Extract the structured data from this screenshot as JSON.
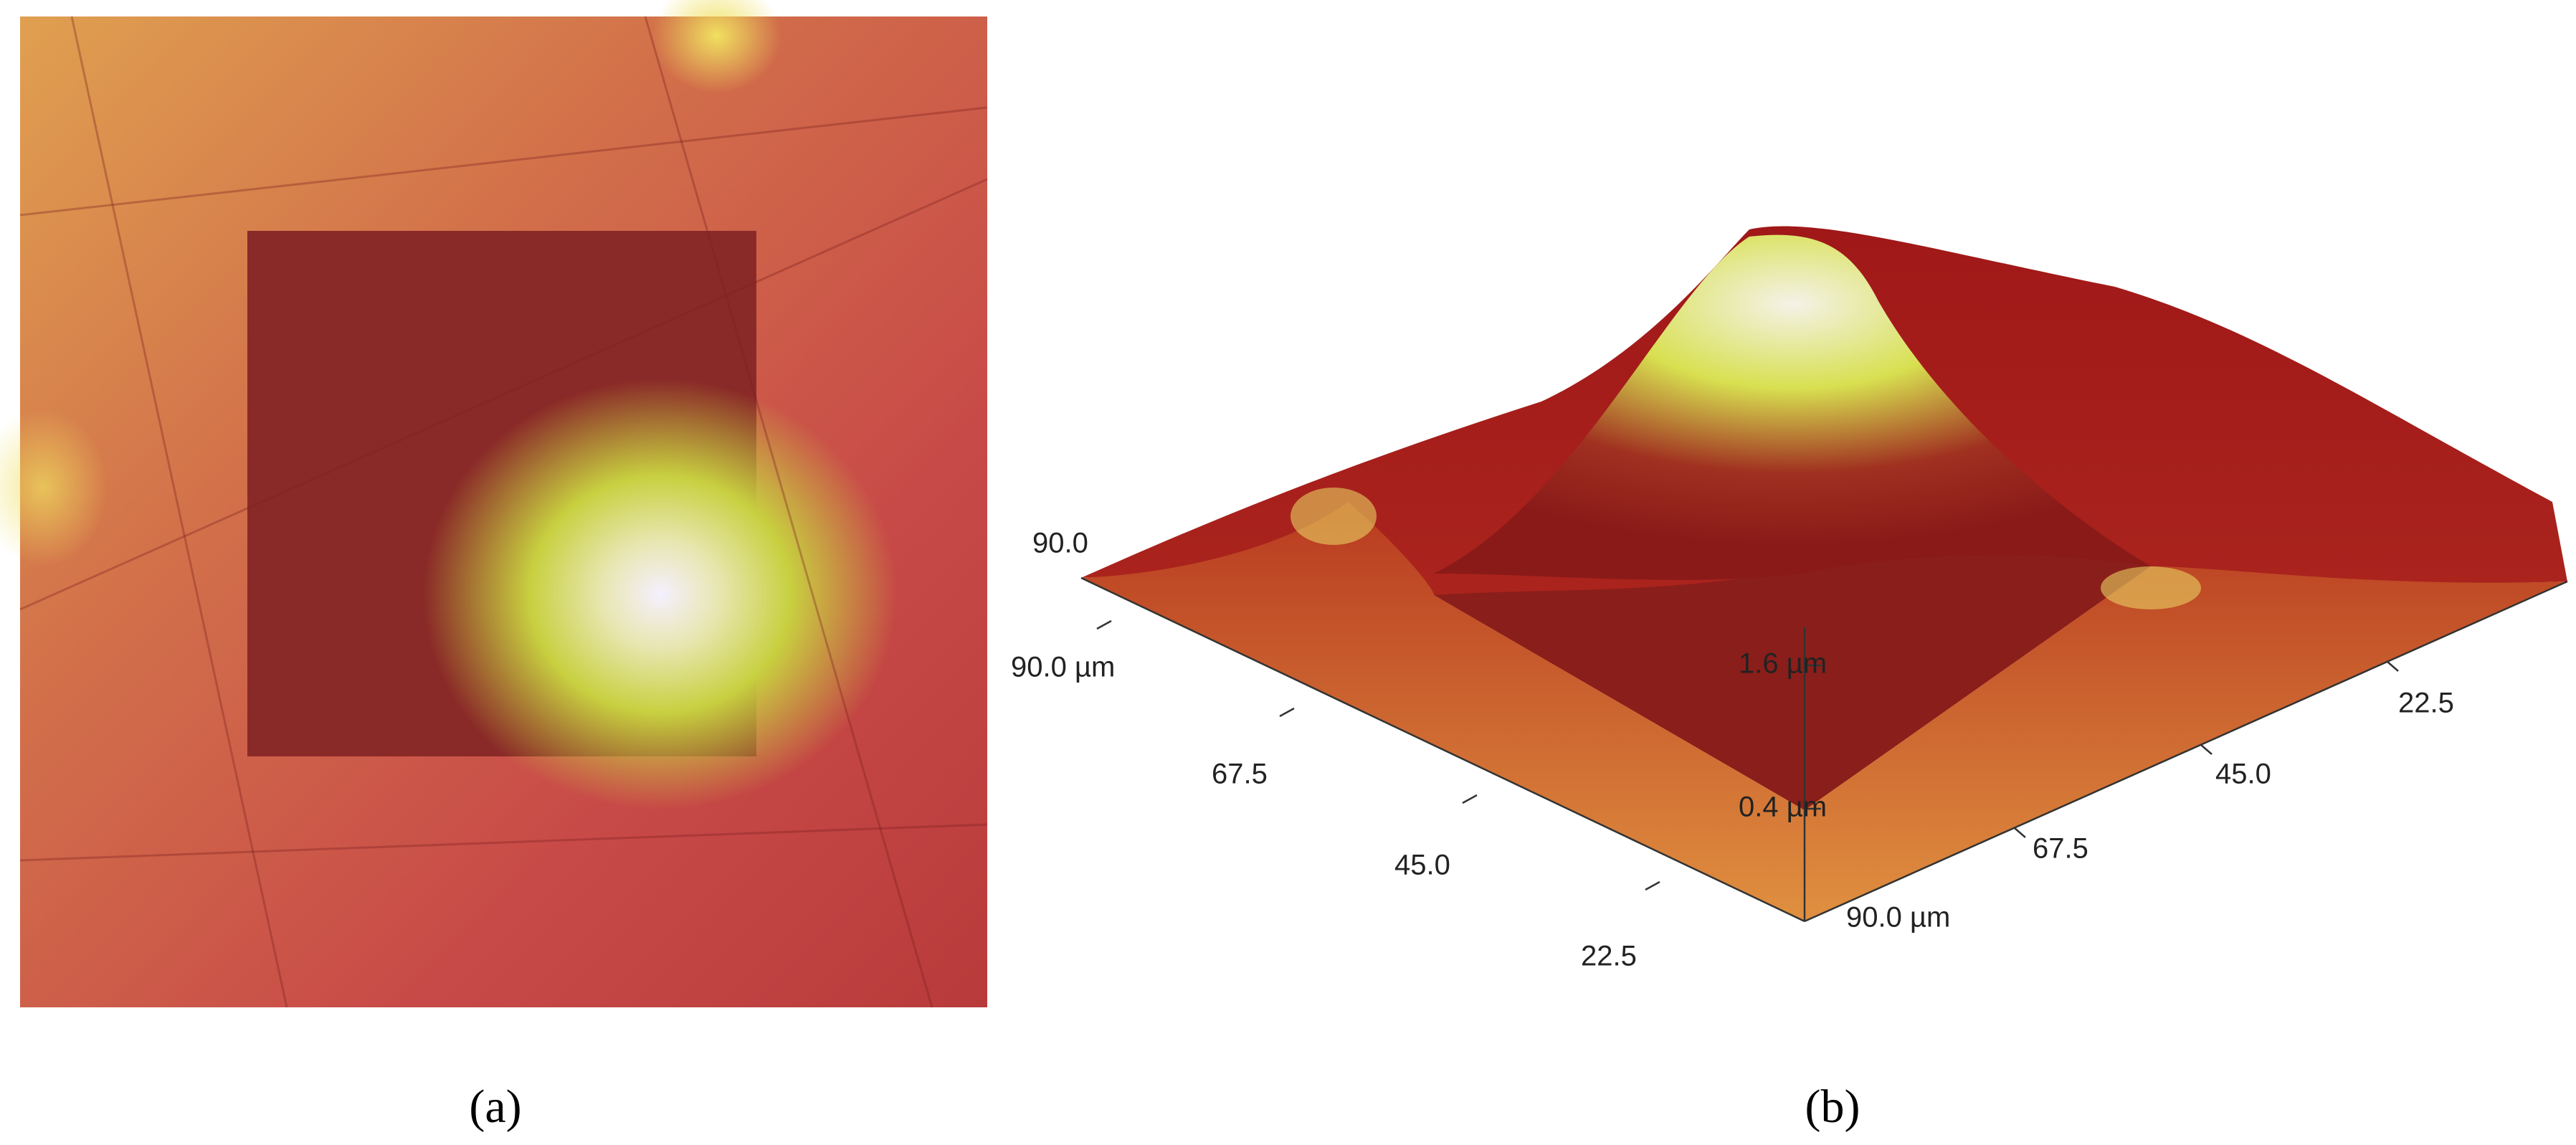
{
  "panels": [
    {
      "label": "(a)"
    },
    {
      "label": "(b)",
      "corner_label": "90.0",
      "left_axis": [
        "90.0 µm",
        "67.5",
        "45.0",
        "22.5"
      ],
      "right_axis": [
        "22.5",
        "45.0",
        "67.5",
        "90.0 µm"
      ],
      "vertical_axis": [
        "1.6 µm",
        "0.4 µm"
      ]
    }
  ]
}
